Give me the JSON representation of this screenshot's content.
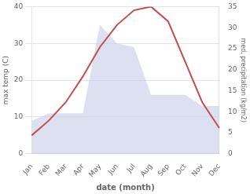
{
  "chart_data": {
    "type": "line",
    "xlabel": "date (month)",
    "ylabel": "max temp (C)",
    "y2label": "med. precipitation (kg/m2)",
    "categories": [
      "Jan",
      "Feb",
      "Mar",
      "Apr",
      "May",
      "Jun",
      "Jul",
      "Aug",
      "Sep",
      "Oct",
      "Nov",
      "Dec"
    ],
    "series": [
      {
        "type": "area",
        "color": "#c5cce8",
        "values": [
          9,
          11,
          11,
          11,
          35,
          30,
          29,
          16,
          16,
          16,
          13,
          13
        ]
      },
      {
        "type": "line",
        "color": "#c0504d",
        "values": [
          5,
          9,
          14,
          21,
          29,
          35,
          39,
          40,
          36,
          25,
          14,
          7
        ]
      }
    ],
    "ylim": [
      0,
      40
    ],
    "yticks": [
      0,
      10,
      20,
      30,
      40
    ],
    "y2lim": [
      0,
      35
    ],
    "y2ticks": [
      0,
      5,
      10,
      15,
      20,
      25,
      30,
      35
    ],
    "grid": true
  }
}
